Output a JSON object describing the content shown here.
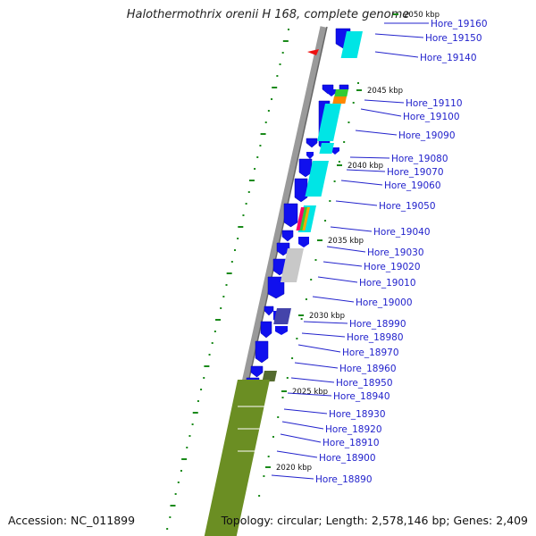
{
  "title": "Halothermothrix orenii H 168, complete genome",
  "accession": "Accession: NC_011899",
  "topology": "Topology: circular; Length: 2,578,146 bp; Genes: 2,409",
  "scale_marks": [
    "2050 kbp",
    "2045 kbp",
    "2040 kbp",
    "2035 kbp",
    "2030 kbp",
    "2025 kbp",
    "2020 kbp"
  ],
  "genes": [
    "Hore_19160",
    "Hore_19150",
    "Hore_19140",
    "Hore_19110",
    "Hore_19100",
    "Hore_19090",
    "Hore_19080",
    "Hore_19070",
    "Hore_19060",
    "Hore_19050",
    "Hore_19040",
    "Hore_19030",
    "Hore_19020",
    "Hore_19010",
    "Hore_19000",
    "Hore_18990",
    "Hore_18980",
    "Hore_18970",
    "Hore_18960",
    "Hore_18950",
    "Hore_18940",
    "Hore_18930",
    "Hore_18920",
    "Hore_18910",
    "Hore_18900",
    "Hore_18890"
  ],
  "colors": {
    "gene_blue": "#1010ee",
    "cyan": "#00e5e5",
    "gray_bar": "#c8c8c8",
    "olive": "#6b8e23",
    "backbone": "#9a9a9a",
    "marker_green": "#1a8a1a",
    "label_blue": "#2222cc",
    "pointer_red": "#ee1111"
  }
}
